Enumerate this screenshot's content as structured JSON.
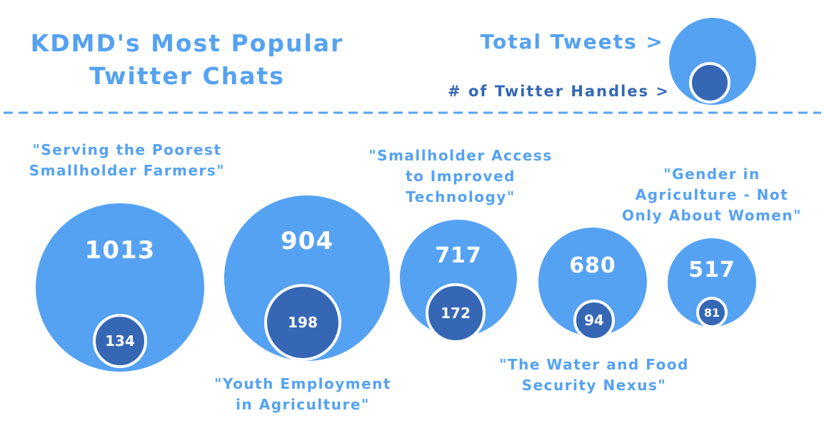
{
  "colors": {
    "total_tweets": "#55a2f2",
    "handles": "#3567b5",
    "title": "#55a2f2",
    "legend_dark": "#3567b5",
    "divider": "#55a2f2"
  },
  "chart_data": {
    "type": "bubble",
    "title_lines": [
      "KDMD's Most Popular",
      "Twitter Chats"
    ],
    "legend": {
      "total_label": "Total Tweets >",
      "handles_label": "# of Twitter Handles >"
    },
    "series": [
      {
        "name": "Total Tweets",
        "values": [
          1013,
          904,
          717,
          680,
          517
        ]
      },
      {
        "name": "# of Twitter Handles",
        "values": [
          134,
          198,
          172,
          94,
          81
        ]
      }
    ],
    "chats": [
      {
        "label_lines": [
          "\"Serving the Poorest",
          "Smallholder Farmers\""
        ],
        "tweets": "1013",
        "handles": "134"
      },
      {
        "label_lines": [
          "\"Youth Employment",
          "in Agriculture\""
        ],
        "tweets": "904",
        "handles": "198"
      },
      {
        "label_lines": [
          "\"Smallholder Access",
          "to Improved",
          "Technology\""
        ],
        "tweets": "717",
        "handles": "172"
      },
      {
        "label_lines": [
          "\"The Water and Food",
          "Security Nexus\""
        ],
        "tweets": "680",
        "handles": "94"
      },
      {
        "label_lines": [
          "\"Gender in",
          "Agriculture - Not",
          "Only About Women\""
        ],
        "tweets": "517",
        "handles": "81"
      }
    ]
  }
}
